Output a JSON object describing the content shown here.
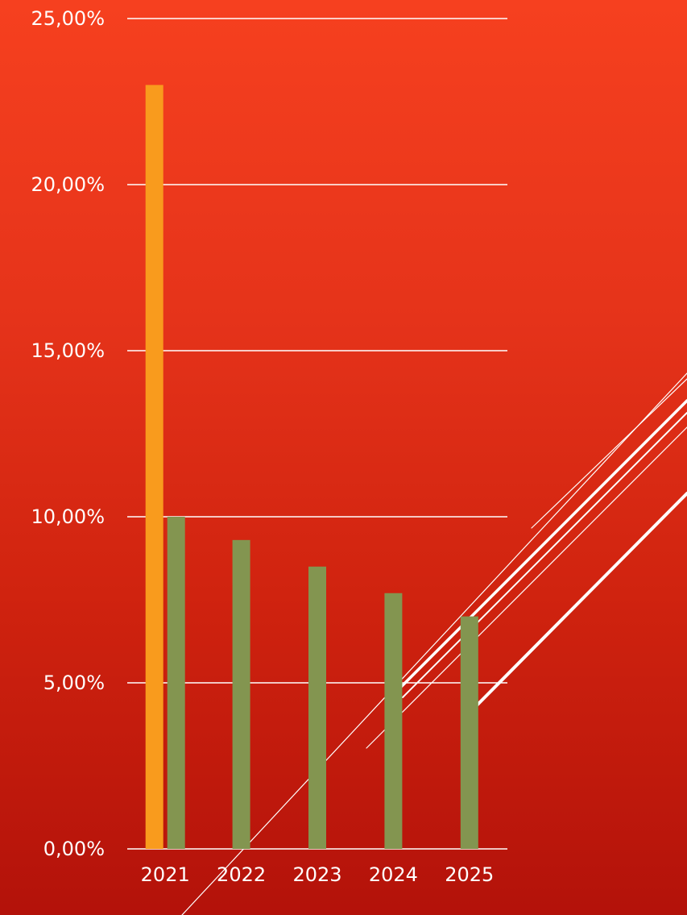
{
  "chart_data": {
    "type": "bar",
    "title": "",
    "xlabel": "",
    "ylabel": "",
    "categories": [
      "2021",
      "2022",
      "2023",
      "2024",
      "2025"
    ],
    "series": [
      {
        "values": [
          23.0,
          null,
          null,
          null,
          null
        ],
        "color": "#f99b1d"
      },
      {
        "values": [
          10.0,
          9.3,
          8.5,
          7.7,
          7.0
        ],
        "color": "#839550"
      }
    ],
    "ylim": [
      0,
      25
    ],
    "yticks": [
      "0,00%",
      "5,00%",
      "10,00%",
      "15,00%",
      "20,00%",
      "25,00%"
    ],
    "grid": true,
    "legend": "none"
  },
  "colors": {
    "background_top": "#f6401f",
    "background_bottom": "#b3120a",
    "text": "#ffffff"
  }
}
